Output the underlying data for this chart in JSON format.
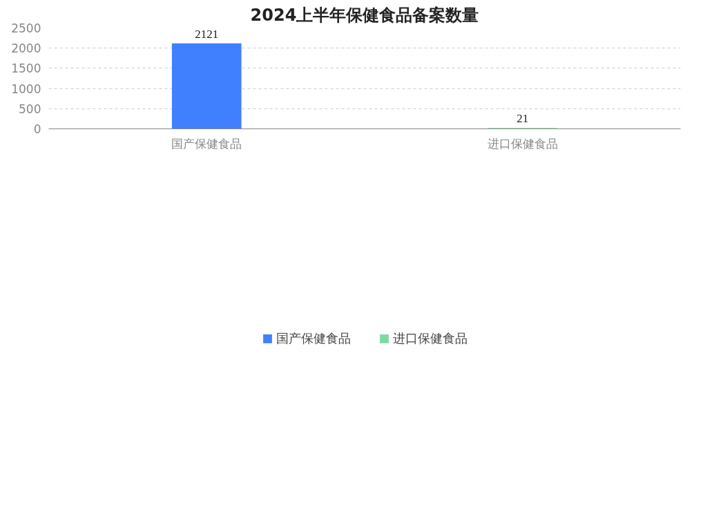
{
  "chart_data": {
    "type": "bar",
    "title": "2024上半年保健食品备案数量",
    "categories": [
      "国产保健食品",
      "进口保健食品"
    ],
    "series": [
      {
        "name": "国产保健食品",
        "color": "#4080ff",
        "values": [
          2121,
          null
        ]
      },
      {
        "name": "进口保健食品",
        "color": "#7dd9a0",
        "values": [
          null,
          21
        ]
      }
    ],
    "stacked": true,
    "ylim": [
      0,
      2500
    ],
    "yticks": [
      0,
      500,
      1000,
      1500,
      2000,
      2500
    ],
    "grid": "y",
    "legend": "bottom",
    "data_labels": true
  }
}
